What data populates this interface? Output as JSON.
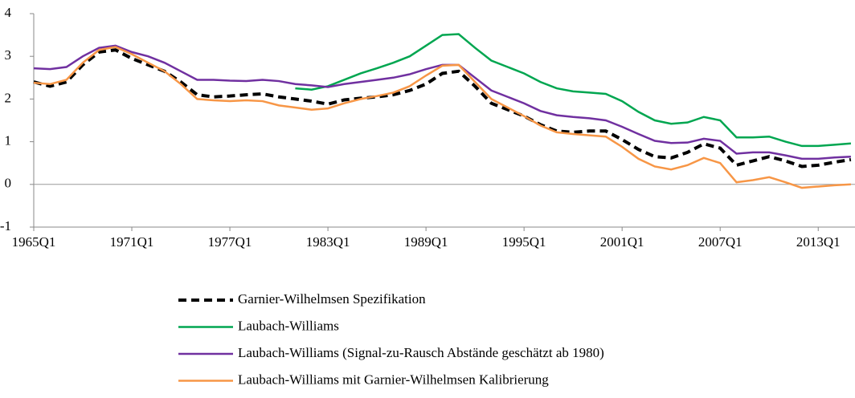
{
  "chart_data": {
    "type": "line",
    "x": [
      1965,
      1966,
      1967,
      1968,
      1969,
      1970,
      1971,
      1972,
      1973,
      1974,
      1975,
      1976,
      1977,
      1978,
      1979,
      1980,
      1981,
      1982,
      1983,
      1984,
      1985,
      1986,
      1987,
      1988,
      1989,
      1990,
      1991,
      1992,
      1993,
      1994,
      1995,
      1996,
      1997,
      1998,
      1999,
      2000,
      2001,
      2002,
      2003,
      2004,
      2005,
      2006,
      2007,
      2008,
      2009,
      2010,
      2011,
      2012,
      2013,
      2014,
      2015
    ],
    "xlim": [
      1965,
      2015.25
    ],
    "xticks": [
      {
        "value": 1965,
        "label": "1965Q1"
      },
      {
        "value": 1971,
        "label": "1971Q1"
      },
      {
        "value": 1977,
        "label": "1977Q1"
      },
      {
        "value": 1983,
        "label": "1983Q1"
      },
      {
        "value": 1989,
        "label": "1989Q1"
      },
      {
        "value": 1995,
        "label": "1995Q1"
      },
      {
        "value": 2001,
        "label": "2001Q1"
      },
      {
        "value": 2007,
        "label": "2007Q1"
      },
      {
        "value": 2013,
        "label": "2013Q1"
      }
    ],
    "ylim": [
      -1,
      4
    ],
    "yticks": [
      -1,
      0,
      1,
      2,
      3,
      4
    ],
    "series": [
      {
        "name": "Garnier-Wilhelmsen Spezifikation",
        "color": "#000000",
        "dashed": true,
        "values": [
          2.4,
          2.3,
          2.4,
          2.8,
          3.1,
          3.15,
          2.95,
          2.8,
          2.65,
          2.4,
          2.1,
          2.05,
          2.07,
          2.1,
          2.12,
          2.05,
          2.0,
          1.95,
          1.88,
          1.98,
          2.02,
          2.05,
          2.1,
          2.2,
          2.35,
          2.6,
          2.65,
          2.3,
          1.9,
          1.75,
          1.6,
          1.4,
          1.25,
          1.22,
          1.25,
          1.25,
          1.05,
          0.82,
          0.65,
          0.62,
          0.75,
          0.95,
          0.85,
          0.45,
          0.55,
          0.65,
          0.55,
          0.42,
          0.45,
          0.52,
          0.58
        ]
      },
      {
        "name": "Laubach-Williams",
        "color": "#00a650",
        "dashed": false,
        "values": [
          null,
          null,
          null,
          null,
          null,
          null,
          null,
          null,
          null,
          null,
          null,
          null,
          null,
          null,
          null,
          null,
          2.25,
          2.22,
          2.3,
          2.45,
          2.6,
          2.72,
          2.85,
          3.0,
          3.25,
          3.5,
          3.52,
          3.2,
          2.9,
          2.75,
          2.6,
          2.4,
          2.25,
          2.18,
          2.15,
          2.12,
          1.95,
          1.7,
          1.5,
          1.42,
          1.45,
          1.58,
          1.5,
          1.1,
          1.1,
          1.12,
          1.0,
          0.9,
          0.9,
          0.93,
          0.96
        ]
      },
      {
        "name": "Laubach-Williams (Signal-zu-Rausch Abstände geschätzt ab 1980)",
        "color": "#7030a0",
        "dashed": false,
        "values": [
          2.72,
          2.7,
          2.75,
          3.0,
          3.2,
          3.25,
          3.1,
          3.0,
          2.85,
          2.65,
          2.45,
          2.45,
          2.43,
          2.42,
          2.45,
          2.42,
          2.35,
          2.32,
          2.28,
          2.35,
          2.4,
          2.45,
          2.5,
          2.58,
          2.7,
          2.8,
          2.8,
          2.5,
          2.2,
          2.05,
          1.9,
          1.72,
          1.62,
          1.58,
          1.55,
          1.5,
          1.35,
          1.18,
          1.02,
          0.97,
          0.98,
          1.07,
          1.02,
          0.72,
          0.75,
          0.75,
          0.68,
          0.6,
          0.6,
          0.63,
          0.65
        ]
      },
      {
        "name": "Laubach-Williams mit Garnier-Wilhelmsen Kalibrierung",
        "color": "#f79646",
        "dashed": false,
        "values": [
          2.38,
          2.35,
          2.45,
          2.85,
          3.15,
          3.22,
          3.05,
          2.85,
          2.65,
          2.35,
          2.0,
          1.97,
          1.95,
          1.97,
          1.95,
          1.85,
          1.8,
          1.75,
          1.78,
          1.9,
          2.0,
          2.07,
          2.15,
          2.3,
          2.55,
          2.78,
          2.8,
          2.4,
          2.0,
          1.8,
          1.6,
          1.38,
          1.22,
          1.18,
          1.15,
          1.12,
          0.88,
          0.6,
          0.42,
          0.35,
          0.45,
          0.62,
          0.5,
          0.05,
          0.1,
          0.17,
          0.05,
          -0.08,
          -0.05,
          -0.02,
          0.0
        ]
      }
    ]
  }
}
